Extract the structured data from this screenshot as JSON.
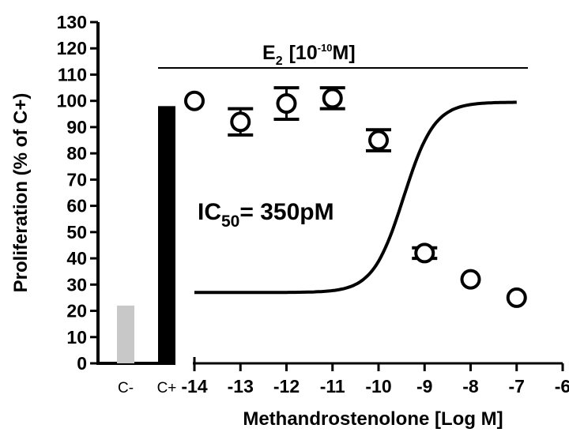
{
  "chart_data": {
    "type": "scatter",
    "xlabel": "Methandrostenolone [Log M]",
    "ylabel": "Proliferation (% of C+)",
    "ylim": [
      0,
      130
    ],
    "yticks": [
      0,
      10,
      20,
      30,
      40,
      50,
      60,
      70,
      80,
      90,
      100,
      110,
      120,
      130
    ],
    "xlim": [
      -14,
      -6
    ],
    "xticks": [
      -14,
      -13,
      -12,
      -11,
      -10,
      -9,
      -8,
      -7,
      -6
    ],
    "control_bars": [
      {
        "label": "C-",
        "value": 22,
        "color": "#c8c8c8"
      },
      {
        "label": "C+",
        "value": 98,
        "color": "#000000"
      }
    ],
    "points": [
      {
        "x": -14,
        "y": 100,
        "err": 1
      },
      {
        "x": -13,
        "y": 92,
        "err": 5
      },
      {
        "x": -12,
        "y": 99,
        "err": 6
      },
      {
        "x": -11,
        "y": 101,
        "err": 4
      },
      {
        "x": -10,
        "y": 85,
        "err": 4
      },
      {
        "x": -9,
        "y": 42,
        "err": 2
      },
      {
        "x": -8,
        "y": 32,
        "err": 1
      },
      {
        "x": -7,
        "y": 25,
        "err": 1
      }
    ],
    "fit": {
      "top": 99.5,
      "bottom": 27,
      "log_ic50": -9.456,
      "hill": 1.3
    },
    "annotations": {
      "e2_main": "E",
      "e2_sub": "2",
      "e2_conc_pre": "[10",
      "e2_conc_sup": "-10",
      "e2_conc_post": "M]",
      "ic50_main": "IC",
      "ic50_sub": "50",
      "ic50_value": "= 350pM"
    }
  }
}
